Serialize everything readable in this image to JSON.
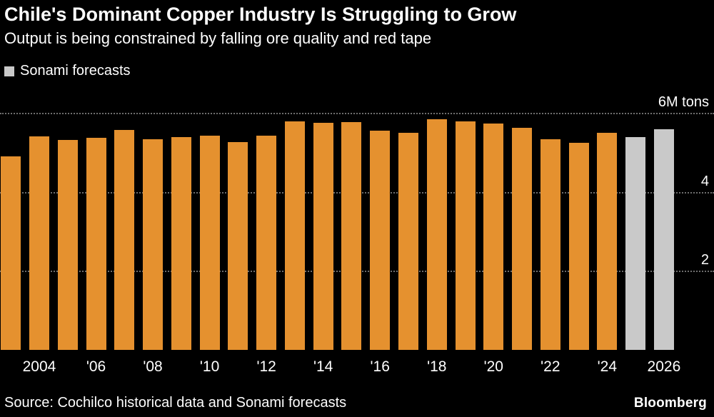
{
  "header": {
    "title": "Chile's Dominant Copper Industry Is Struggling to Grow",
    "subtitle": "Output is being constrained by falling ore quality and red tape"
  },
  "legend": {
    "label": "Sonami forecasts",
    "swatch_color": "#c9c9c9"
  },
  "footer": {
    "source": "Source: Cochilco historical data and Sonami forecasts",
    "brand": "Bloomberg"
  },
  "chart_data": {
    "type": "bar",
    "title": "Chile's Dominant Copper Industry Is Struggling to Grow",
    "subtitle": "Output is being constrained by falling ore quality and red tape",
    "unit": "M tons",
    "ylabel": "6M tons",
    "ylim": [
      0,
      6.15
    ],
    "grid": "horizontal dotted",
    "legend_position": "top-left",
    "x": [
      2003,
      2004,
      2005,
      2006,
      2007,
      2008,
      2009,
      2010,
      2011,
      2012,
      2013,
      2014,
      2015,
      2016,
      2017,
      2018,
      2019,
      2020,
      2021,
      2022,
      2023,
      2024,
      2025,
      2026
    ],
    "values": [
      4.9,
      5.41,
      5.32,
      5.36,
      5.56,
      5.33,
      5.39,
      5.42,
      5.26,
      5.43,
      5.78,
      5.75,
      5.76,
      5.55,
      5.5,
      5.83,
      5.79,
      5.73,
      5.62,
      5.33,
      5.25,
      5.5,
      5.39,
      5.58
    ],
    "forecast_years": [
      2025,
      2026
    ],
    "series": [
      {
        "name": "Cochilco historical data",
        "years": "2003-2024",
        "color": "#e5912f"
      },
      {
        "name": "Sonami forecasts",
        "years": "2025-2026",
        "color": "#c9c9c9"
      }
    ],
    "colors": {
      "historical": "#e5912f",
      "forecast": "#c9c9c9"
    },
    "gridlines": [
      {
        "value": 6,
        "label": "6M tons"
      },
      {
        "value": 4,
        "label": "4"
      },
      {
        "value": 2,
        "label": "2"
      }
    ],
    "x_ticks": [
      {
        "year": 2004,
        "label": "2004"
      },
      {
        "year": 2006,
        "label": "'06"
      },
      {
        "year": 2008,
        "label": "'08"
      },
      {
        "year": 2010,
        "label": "'10"
      },
      {
        "year": 2012,
        "label": "'12"
      },
      {
        "year": 2014,
        "label": "'14"
      },
      {
        "year": 2016,
        "label": "'16"
      },
      {
        "year": 2018,
        "label": "'18"
      },
      {
        "year": 2020,
        "label": "'20"
      },
      {
        "year": 2022,
        "label": "'22"
      },
      {
        "year": 2024,
        "label": "'24"
      },
      {
        "year": 2026,
        "label": "2026"
      }
    ]
  }
}
